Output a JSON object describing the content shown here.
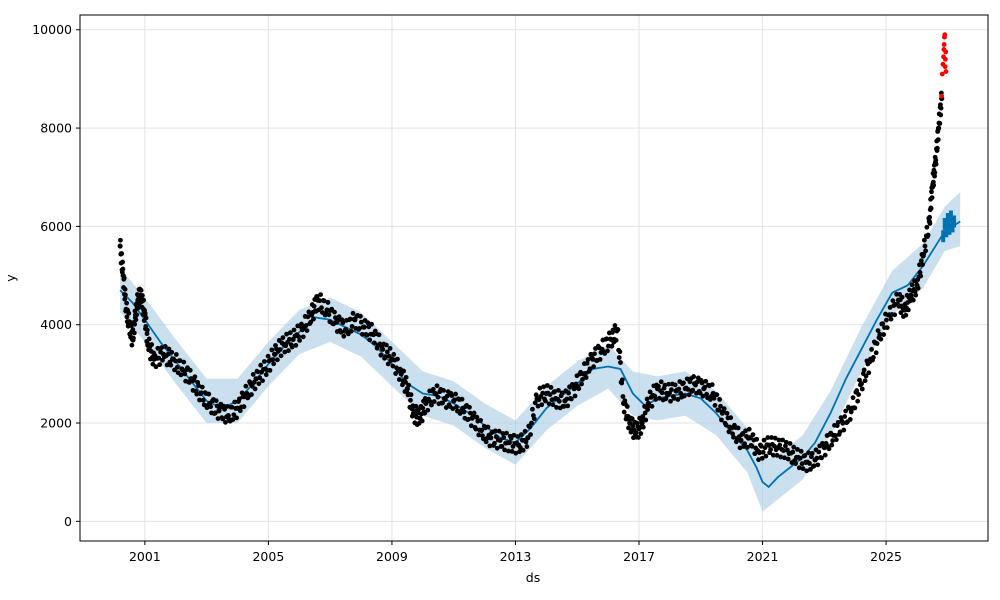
{
  "chart_data": {
    "type": "scatter",
    "title": "",
    "xlabel": "ds",
    "ylabel": "y",
    "xlim": [
      1998.9,
      2028.3
    ],
    "ylim": [
      -400,
      10300
    ],
    "x_ticks": [
      2001,
      2005,
      2009,
      2013,
      2017,
      2021,
      2025
    ],
    "y_ticks": [
      0,
      2000,
      4000,
      6000,
      8000,
      10000
    ],
    "grid": true,
    "colors": {
      "observed": "#000000",
      "anomaly": "#ff0000",
      "forecast": "#0072b2",
      "uncertainty": "#a9cce3"
    },
    "series": [
      {
        "kind": "observed",
        "points": [
          [
            2000.2,
            5600
          ],
          [
            2000.3,
            5000
          ],
          [
            2000.4,
            4300
          ],
          [
            2000.5,
            4000
          ],
          [
            2000.6,
            3700
          ],
          [
            2000.7,
            4200
          ],
          [
            2000.8,
            4600
          ],
          [
            2000.9,
            4500
          ],
          [
            2001.0,
            4200
          ],
          [
            2001.1,
            3600
          ],
          [
            2001.3,
            3300
          ],
          [
            2001.6,
            3400
          ],
          [
            2001.9,
            3300
          ],
          [
            2002.2,
            3100
          ],
          [
            2002.5,
            2900
          ],
          [
            2002.8,
            2600
          ],
          [
            2003.1,
            2400
          ],
          [
            2003.4,
            2250
          ],
          [
            2003.7,
            2150
          ],
          [
            2004.0,
            2300
          ],
          [
            2004.3,
            2600
          ],
          [
            2004.6,
            2900
          ],
          [
            2004.9,
            3100
          ],
          [
            2005.2,
            3400
          ],
          [
            2005.5,
            3600
          ],
          [
            2005.8,
            3700
          ],
          [
            2006.1,
            3900
          ],
          [
            2006.4,
            4200
          ],
          [
            2006.6,
            4500
          ],
          [
            2006.9,
            4300
          ],
          [
            2007.2,
            4050
          ],
          [
            2007.5,
            3900
          ],
          [
            2007.8,
            4100
          ],
          [
            2008.1,
            3950
          ],
          [
            2008.4,
            3800
          ],
          [
            2008.7,
            3500
          ],
          [
            2009.0,
            3300
          ],
          [
            2009.3,
            3000
          ],
          [
            2009.5,
            2700
          ],
          [
            2009.7,
            2200
          ],
          [
            2009.9,
            2100
          ],
          [
            2010.1,
            2400
          ],
          [
            2010.4,
            2600
          ],
          [
            2010.7,
            2500
          ],
          [
            2011.0,
            2450
          ],
          [
            2011.3,
            2300
          ],
          [
            2011.6,
            2100
          ],
          [
            2011.9,
            1850
          ],
          [
            2012.2,
            1700
          ],
          [
            2012.5,
            1650
          ],
          [
            2012.8,
            1600
          ],
          [
            2013.1,
            1550
          ],
          [
            2013.4,
            1700
          ],
          [
            2013.7,
            2500
          ],
          [
            2014.0,
            2600
          ],
          [
            2014.3,
            2500
          ],
          [
            2014.6,
            2450
          ],
          [
            2014.9,
            2700
          ],
          [
            2015.2,
            3000
          ],
          [
            2015.5,
            3300
          ],
          [
            2015.8,
            3500
          ],
          [
            2016.1,
            3700
          ],
          [
            2016.3,
            3900
          ],
          [
            2016.5,
            2400
          ],
          [
            2016.7,
            2000
          ],
          [
            2016.9,
            1800
          ],
          [
            2017.1,
            2000
          ],
          [
            2017.3,
            2400
          ],
          [
            2017.6,
            2700
          ],
          [
            2017.9,
            2600
          ],
          [
            2018.2,
            2650
          ],
          [
            2018.5,
            2700
          ],
          [
            2018.8,
            2800
          ],
          [
            2019.1,
            2700
          ],
          [
            2019.4,
            2600
          ],
          [
            2019.7,
            2200
          ],
          [
            2020.0,
            1900
          ],
          [
            2020.3,
            1650
          ],
          [
            2020.6,
            1700
          ],
          [
            2020.9,
            1400
          ],
          [
            2021.2,
            1550
          ],
          [
            2021.5,
            1500
          ],
          [
            2021.8,
            1450
          ],
          [
            2022.1,
            1300
          ],
          [
            2022.4,
            1200
          ],
          [
            2022.7,
            1250
          ],
          [
            2023.0,
            1500
          ],
          [
            2023.3,
            1750
          ],
          [
            2023.6,
            2000
          ],
          [
            2023.9,
            2300
          ],
          [
            2024.2,
            2800
          ],
          [
            2024.5,
            3300
          ],
          [
            2024.8,
            3800
          ],
          [
            2025.1,
            4200
          ],
          [
            2025.4,
            4500
          ],
          [
            2025.6,
            4300
          ],
          [
            2025.8,
            4600
          ],
          [
            2026.0,
            4800
          ],
          [
            2026.2,
            5400
          ],
          [
            2026.4,
            6100
          ],
          [
            2026.5,
            6800
          ],
          [
            2026.6,
            7300
          ],
          [
            2026.7,
            8000
          ],
          [
            2026.8,
            8600
          ]
        ]
      },
      {
        "kind": "anomaly",
        "points": [
          [
            2026.8,
            8650
          ],
          [
            2026.82,
            9100
          ],
          [
            2026.84,
            9300
          ],
          [
            2026.86,
            9450
          ],
          [
            2026.87,
            9600
          ],
          [
            2026.88,
            9700
          ],
          [
            2026.89,
            9850
          ],
          [
            2026.9,
            9900
          ],
          [
            2026.91,
            9250
          ],
          [
            2026.92,
            9400
          ],
          [
            2026.93,
            9550
          ],
          [
            2026.94,
            9150
          ]
        ]
      },
      {
        "kind": "forecast",
        "points": [
          [
            2000.2,
            4700
          ],
          [
            2000.6,
            4450
          ],
          [
            2001.0,
            4100
          ],
          [
            2001.5,
            3650
          ],
          [
            2002.0,
            3250
          ],
          [
            2002.5,
            2850
          ],
          [
            2003.0,
            2450
          ],
          [
            2003.5,
            2300
          ],
          [
            2004.0,
            2450
          ],
          [
            2004.5,
            2800
          ],
          [
            2005.0,
            3200
          ],
          [
            2005.5,
            3550
          ],
          [
            2006.0,
            3850
          ],
          [
            2006.5,
            4150
          ],
          [
            2007.0,
            4100
          ],
          [
            2007.5,
            3950
          ],
          [
            2008.0,
            3800
          ],
          [
            2008.5,
            3550
          ],
          [
            2009.0,
            3200
          ],
          [
            2009.5,
            2800
          ],
          [
            2010.0,
            2600
          ],
          [
            2010.5,
            2550
          ],
          [
            2011.0,
            2400
          ],
          [
            2011.5,
            2200
          ],
          [
            2012.0,
            1950
          ],
          [
            2012.5,
            1700
          ],
          [
            2013.0,
            1600
          ],
          [
            2013.5,
            1900
          ],
          [
            2014.0,
            2300
          ],
          [
            2014.5,
            2550
          ],
          [
            2015.0,
            2800
          ],
          [
            2015.5,
            3100
          ],
          [
            2016.0,
            3150
          ],
          [
            2016.4,
            3100
          ],
          [
            2016.8,
            2600
          ],
          [
            2017.2,
            2350
          ],
          [
            2017.6,
            2500
          ],
          [
            2018.0,
            2550
          ],
          [
            2018.5,
            2600
          ],
          [
            2019.0,
            2500
          ],
          [
            2019.5,
            2200
          ],
          [
            2020.0,
            1800
          ],
          [
            2020.5,
            1450
          ],
          [
            2020.8,
            1100
          ],
          [
            2021.0,
            800
          ],
          [
            2021.2,
            700
          ],
          [
            2021.5,
            900
          ],
          [
            2021.9,
            1100
          ],
          [
            2022.3,
            1300
          ],
          [
            2022.7,
            1600
          ],
          [
            2023.2,
            2200
          ],
          [
            2023.7,
            2900
          ],
          [
            2024.2,
            3500
          ],
          [
            2024.7,
            4100
          ],
          [
            2025.2,
            4650
          ],
          [
            2025.7,
            4800
          ],
          [
            2026.2,
            5200
          ],
          [
            2026.6,
            5600
          ],
          [
            2026.9,
            5900
          ],
          [
            2027.4,
            6100
          ]
        ]
      },
      {
        "kind": "forecast_dense",
        "points": [
          [
            2026.85,
            5800
          ],
          [
            2026.9,
            6050
          ],
          [
            2026.95,
            5900
          ],
          [
            2027.0,
            6150
          ],
          [
            2027.05,
            5950
          ],
          [
            2027.1,
            6200
          ],
          [
            2027.15,
            6000
          ],
          [
            2027.2,
            6100
          ]
        ]
      },
      {
        "kind": "uncertainty",
        "upper": [
          [
            2000.2,
            5150
          ],
          [
            2001.0,
            4550
          ],
          [
            2002.0,
            3700
          ],
          [
            2003.0,
            2900
          ],
          [
            2004.0,
            2900
          ],
          [
            2005.0,
            3650
          ],
          [
            2006.0,
            4300
          ],
          [
            2007.0,
            4550
          ],
          [
            2008.0,
            4250
          ],
          [
            2009.0,
            3650
          ],
          [
            2010.0,
            3050
          ],
          [
            2011.0,
            2850
          ],
          [
            2012.0,
            2400
          ],
          [
            2013.0,
            2050
          ],
          [
            2014.0,
            2750
          ],
          [
            2015.0,
            3250
          ],
          [
            2016.0,
            3600
          ],
          [
            2016.8,
            3050
          ],
          [
            2017.6,
            2950
          ],
          [
            2018.5,
            3050
          ],
          [
            2019.5,
            2650
          ],
          [
            2020.5,
            1900
          ],
          [
            2021.0,
            1250
          ],
          [
            2021.5,
            1350
          ],
          [
            2022.3,
            1750
          ],
          [
            2023.2,
            2650
          ],
          [
            2024.2,
            3950
          ],
          [
            2025.2,
            5100
          ],
          [
            2026.2,
            5650
          ],
          [
            2026.9,
            6400
          ],
          [
            2027.4,
            6700
          ]
        ],
        "lower": [
          [
            2000.2,
            4250
          ],
          [
            2001.0,
            3650
          ],
          [
            2002.0,
            2800
          ],
          [
            2003.0,
            2000
          ],
          [
            2004.0,
            2000
          ],
          [
            2005.0,
            2750
          ],
          [
            2006.0,
            3400
          ],
          [
            2007.0,
            3650
          ],
          [
            2008.0,
            3350
          ],
          [
            2009.0,
            2750
          ],
          [
            2010.0,
            2150
          ],
          [
            2011.0,
            1950
          ],
          [
            2012.0,
            1500
          ],
          [
            2013.0,
            1150
          ],
          [
            2014.0,
            1850
          ],
          [
            2015.0,
            2350
          ],
          [
            2016.0,
            2700
          ],
          [
            2016.8,
            2150
          ],
          [
            2017.6,
            2050
          ],
          [
            2018.5,
            2150
          ],
          [
            2019.5,
            1750
          ],
          [
            2020.5,
            1000
          ],
          [
            2021.0,
            200
          ],
          [
            2021.5,
            450
          ],
          [
            2022.3,
            850
          ],
          [
            2023.2,
            1750
          ],
          [
            2024.2,
            3050
          ],
          [
            2025.2,
            4200
          ],
          [
            2026.2,
            4750
          ],
          [
            2026.9,
            5500
          ],
          [
            2027.4,
            5600
          ]
        ]
      }
    ]
  }
}
